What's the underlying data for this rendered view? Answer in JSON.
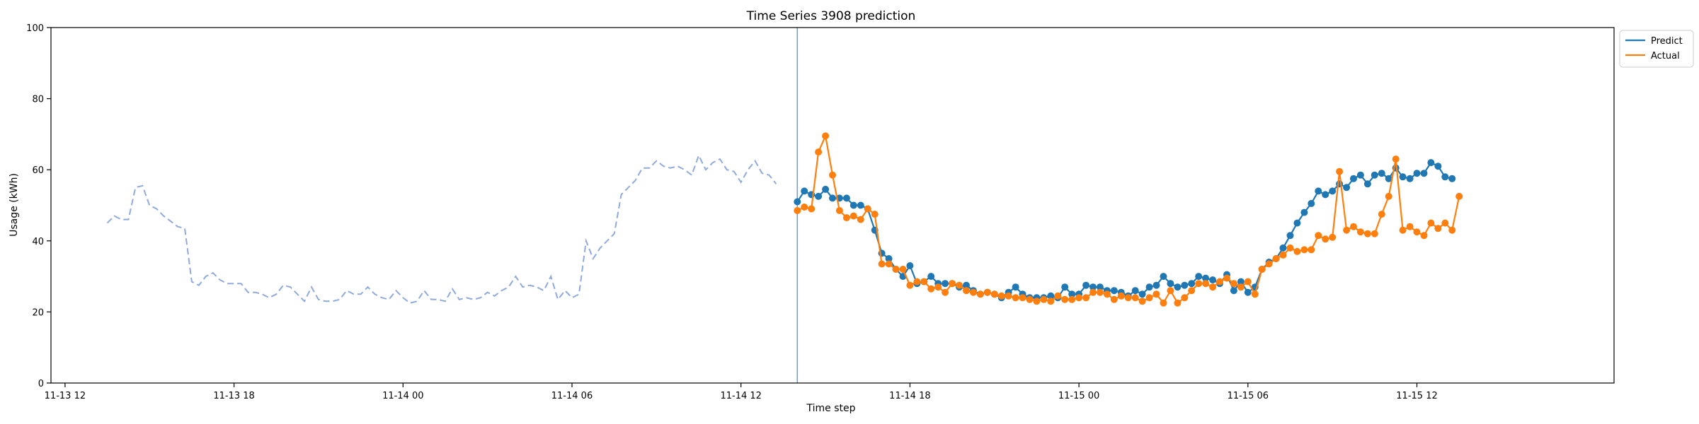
{
  "chart_data": {
    "type": "line",
    "title": "Time Series 3908 prediction",
    "xlabel": "Time step",
    "ylabel": "Usage (kWh)",
    "x_unit": "datetime",
    "xlim": [
      "2024-11-13T11:30",
      "2024-11-15T19:00"
    ],
    "ylim": [
      0,
      100
    ],
    "y_ticks": [
      0,
      20,
      40,
      60,
      80,
      100
    ],
    "x_ticks": [
      {
        "t": "2024-11-13T12:00",
        "label": "11-13 12"
      },
      {
        "t": "2024-11-13T18:00",
        "label": "11-13 18"
      },
      {
        "t": "2024-11-14T00:00",
        "label": "11-14 00"
      },
      {
        "t": "2024-11-14T06:00",
        "label": "11-14 06"
      },
      {
        "t": "2024-11-14T12:00",
        "label": "11-14 12"
      },
      {
        "t": "2024-11-14T18:00",
        "label": "11-14 18"
      },
      {
        "t": "2024-11-15T00:00",
        "label": "11-15 00"
      },
      {
        "t": "2024-11-15T06:00",
        "label": "11-15 06"
      },
      {
        "t": "2024-11-15T12:00",
        "label": "11-15 12"
      }
    ],
    "step_minutes": 15,
    "grid": false,
    "legend_position": "top-right, outside plot",
    "forecast_start": "2024-11-14T14:00",
    "series": [
      {
        "name": "",
        "role": "history",
        "style": "dashed",
        "color": "#8faadc",
        "start": "2024-11-13T13:30",
        "values": [
          45,
          47,
          46,
          46,
          55,
          55.5,
          50,
          49,
          47,
          45.5,
          44,
          43.5,
          28.5,
          27.5,
          30,
          31,
          29,
          28,
          28,
          28,
          25.5,
          25.5,
          25,
          24,
          25,
          27.5,
          27,
          25,
          23,
          27,
          23.5,
          23,
          23,
          23.5,
          26,
          25,
          25,
          27,
          25,
          24,
          23.5,
          26,
          24,
          22.5,
          23,
          26,
          23.5,
          23.5,
          23,
          26.5,
          23.5,
          24,
          23.5,
          24,
          25.5,
          24.5,
          26,
          27,
          30,
          27,
          27.5,
          27,
          26,
          30,
          23.5,
          26,
          24,
          25,
          40,
          35,
          38,
          40,
          42,
          53,
          55,
          57,
          60.5,
          60.5,
          62.5,
          61,
          60.5,
          61,
          60,
          58.5,
          64,
          60,
          62,
          63,
          60,
          59.5,
          56.5,
          60,
          62.5,
          59,
          58.5,
          56
        ]
      },
      {
        "name": "Predict",
        "color": "#1f77b4",
        "start": "2024-11-14T14:00",
        "values": [
          51,
          54,
          53,
          52.5,
          54.5,
          52,
          52,
          52,
          50,
          50,
          49,
          43,
          36.5,
          35,
          32,
          30,
          33,
          28,
          28.5,
          30,
          28,
          28,
          28,
          27,
          27.5,
          26,
          25,
          25.5,
          25,
          24,
          25.5,
          27,
          25,
          24,
          24,
          24,
          24.5,
          24,
          27,
          25,
          25,
          27.5,
          27,
          27,
          26,
          26,
          25.5,
          24.5,
          26,
          25,
          27,
          27.5,
          30,
          28,
          27,
          27.5,
          28,
          30,
          29.5,
          29,
          28,
          30.5,
          26,
          28.5,
          25.5,
          27,
          32,
          34,
          35,
          38,
          41.5,
          45,
          48,
          50.5,
          54,
          53,
          54,
          56,
          55,
          57.5,
          58.5,
          56,
          58.5,
          59,
          57.5,
          60.5,
          58,
          57.5,
          59,
          59,
          62,
          61,
          58,
          57.5
        ]
      },
      {
        "name": "Actual",
        "color": "#ff7f0e",
        "start": "2024-11-14T14:00",
        "values": [
          48.5,
          49.5,
          49,
          65,
          69.5,
          58.5,
          48.5,
          46.5,
          47,
          46,
          49,
          47.5,
          33.5,
          33.5,
          32,
          32,
          27.5,
          28.5,
          28.5,
          26.5,
          27,
          25.5,
          28,
          27.5,
          26,
          25.5,
          25,
          25.5,
          25,
          24.5,
          24.5,
          24,
          24,
          23.5,
          23,
          23.5,
          23,
          24.5,
          23.5,
          23.5,
          24,
          24,
          25.5,
          25.5,
          25,
          23.5,
          24.5,
          24,
          24,
          23,
          24,
          25,
          22.5,
          26,
          22.5,
          24,
          26,
          28,
          28,
          27,
          28.5,
          29.5,
          28,
          27,
          28.5,
          25,
          32,
          33.5,
          35,
          36,
          38,
          37,
          37.5,
          37.5,
          41.5,
          40.5,
          41,
          59.5,
          43,
          44,
          42.5,
          42,
          42,
          47.5,
          52.5,
          63,
          43,
          44,
          42.5,
          41.5,
          45,
          43.5,
          45,
          43,
          52.5
        ]
      }
    ]
  }
}
